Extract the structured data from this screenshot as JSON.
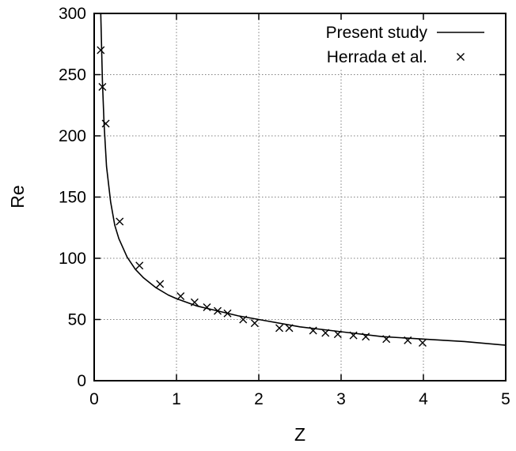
{
  "chart_data": {
    "type": "line",
    "xlabel": "Z",
    "ylabel": "Re",
    "xlim": [
      0,
      5
    ],
    "ylim": [
      0,
      300
    ],
    "xticks": [
      0,
      1,
      2,
      3,
      4,
      5
    ],
    "yticks": [
      0,
      50,
      100,
      150,
      200,
      250,
      300
    ],
    "grid": true,
    "legend_position": "top-right",
    "series": [
      {
        "name": "Present study",
        "style": "line",
        "color": "#000000",
        "x": [
          0.08,
          0.1,
          0.12,
          0.15,
          0.2,
          0.25,
          0.3,
          0.4,
          0.5,
          0.6,
          0.75,
          0.9,
          1.0,
          1.25,
          1.5,
          1.75,
          2.0,
          2.5,
          3.0,
          3.5,
          4.0,
          4.5,
          5.0
        ],
        "y": [
          300,
          245,
          210,
          175,
          146,
          127,
          116,
          101,
          91,
          84,
          76,
          70,
          67,
          61,
          57,
          53,
          50,
          44,
          40,
          36,
          34,
          32,
          29
        ]
      },
      {
        "name": "Herrada et al.",
        "style": "marker",
        "marker": "x",
        "color": "#000000",
        "x": [
          0.08,
          0.1,
          0.14,
          0.31,
          0.55,
          0.8,
          1.05,
          1.22,
          1.37,
          1.5,
          1.62,
          1.81,
          1.95,
          2.25,
          2.37,
          2.66,
          2.81,
          2.96,
          3.15,
          3.3,
          3.55,
          3.81,
          3.99
        ],
        "y": [
          270,
          240,
          210,
          130,
          94,
          79,
          69,
          64,
          60,
          57,
          55,
          50,
          47,
          43,
          43,
          41,
          39,
          38,
          37,
          36,
          34,
          33,
          31
        ]
      }
    ]
  }
}
